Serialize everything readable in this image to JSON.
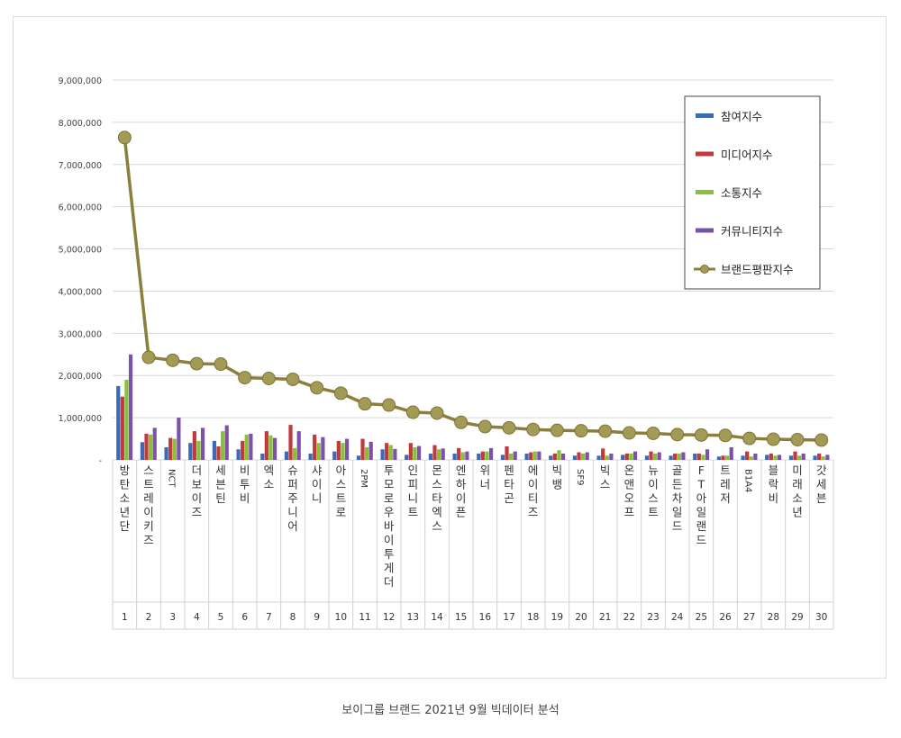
{
  "caption": "보이그룹 브랜드 2021년 9월 빅데이터 분석",
  "chart_data": {
    "type": "bar",
    "ylim": [
      0,
      9000000
    ],
    "y_ticks": [
      "-",
      "1,000,000",
      "2,000,000",
      "3,000,000",
      "4,000,000",
      "5,000,000",
      "6,000,000",
      "7,000,000",
      "8,000,000",
      "9,000,000"
    ],
    "grid": true,
    "legend_position": "top-right",
    "ranks": [
      1,
      2,
      3,
      4,
      5,
      6,
      7,
      8,
      9,
      10,
      11,
      12,
      13,
      14,
      15,
      16,
      17,
      18,
      19,
      20,
      21,
      22,
      23,
      24,
      25,
      26,
      27,
      28,
      29,
      30
    ],
    "categories": [
      "방탄소년단",
      "스트레이키즈",
      "NCT",
      "더보이즈",
      "세븐틴",
      "비투비",
      "엑소",
      "슈퍼주니어",
      "샤이니",
      "아스트로",
      "2PM",
      "투모로우바이투게더",
      "인피니트",
      "몬스타엑스",
      "엔하이픈",
      "위너",
      "펜타곤",
      "에이티즈",
      "빅뱅",
      "SF9",
      "빅스",
      "온앤오프",
      "뉴이스트",
      "골든차일드",
      "FT아일랜드",
      "트레저",
      "B1A4",
      "블락비",
      "미래소년",
      "갓세븐"
    ],
    "series": [
      {
        "name": "참여지수",
        "color": "#3b6bb8",
        "kind": "bar",
        "values": [
          1750000,
          420000,
          300000,
          400000,
          450000,
          250000,
          150000,
          200000,
          150000,
          200000,
          100000,
          250000,
          120000,
          150000,
          150000,
          150000,
          120000,
          150000,
          100000,
          100000,
          100000,
          120000,
          100000,
          100000,
          150000,
          80000,
          100000,
          120000,
          100000,
          100000
        ]
      },
      {
        "name": "미디어지수",
        "color": "#c0393b",
        "kind": "bar",
        "values": [
          1500000,
          620000,
          520000,
          680000,
          320000,
          450000,
          680000,
          830000,
          600000,
          450000,
          500000,
          400000,
          400000,
          350000,
          280000,
          200000,
          320000,
          180000,
          150000,
          180000,
          270000,
          150000,
          200000,
          150000,
          150000,
          100000,
          200000,
          150000,
          200000,
          150000
        ]
      },
      {
        "name": "소통지수",
        "color": "#8bbf3a",
        "kind": "bar",
        "values": [
          1900000,
          600000,
          500000,
          450000,
          680000,
          600000,
          580000,
          280000,
          400000,
          400000,
          300000,
          350000,
          300000,
          250000,
          180000,
          200000,
          150000,
          200000,
          230000,
          150000,
          100000,
          150000,
          150000,
          150000,
          120000,
          100000,
          80000,
          100000,
          100000,
          80000
        ]
      },
      {
        "name": "커뮤니티지수",
        "color": "#7a52a8",
        "kind": "bar",
        "values": [
          2500000,
          760000,
          1000000,
          760000,
          820000,
          620000,
          520000,
          680000,
          540000,
          500000,
          430000,
          260000,
          330000,
          270000,
          200000,
          280000,
          200000,
          200000,
          150000,
          180000,
          150000,
          200000,
          180000,
          180000,
          250000,
          300000,
          150000,
          120000,
          150000,
          120000
        ]
      },
      {
        "name": "브랜드평판지수",
        "color": "#8a7f3d",
        "kind": "line",
        "values": [
          7640000,
          2430000,
          2360000,
          2280000,
          2270000,
          1950000,
          1930000,
          1910000,
          1710000,
          1580000,
          1330000,
          1300000,
          1130000,
          1110000,
          890000,
          790000,
          760000,
          720000,
          700000,
          690000,
          680000,
          640000,
          630000,
          600000,
          590000,
          580000,
          510000,
          490000,
          480000,
          470000
        ]
      }
    ]
  }
}
